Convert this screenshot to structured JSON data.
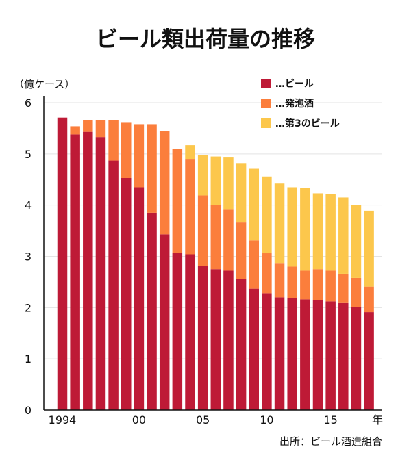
{
  "chart_data": {
    "type": "bar",
    "stacked": true,
    "title": "ビール類出荷量の推移",
    "ylabel": "（億ケース）",
    "xlabel_suffix": "年",
    "source": "出所：ビール酒造組合",
    "ylim": [
      0,
      6
    ],
    "yticks": [
      "0",
      "1",
      "2",
      "3",
      "4",
      "5",
      "6"
    ],
    "grid": true,
    "legend_position": "top-right",
    "x": [
      1994,
      1995,
      1996,
      1997,
      1998,
      1999,
      2000,
      2001,
      2002,
      2003,
      2004,
      2005,
      2006,
      2007,
      2008,
      2009,
      2010,
      2011,
      2012,
      2013,
      2014,
      2015,
      2016,
      2017,
      2018
    ],
    "xtick_labels": [
      {
        "x": 1994,
        "label": "1994"
      },
      {
        "x": 2000,
        "label": "00"
      },
      {
        "x": 2005,
        "label": "05"
      },
      {
        "x": 2010,
        "label": "10"
      },
      {
        "x": 2015,
        "label": "15"
      }
    ],
    "series": [
      {
        "name": "…ビール",
        "color": "#be1a36",
        "values": [
          5.71,
          5.38,
          5.43,
          5.33,
          4.87,
          4.53,
          4.35,
          3.85,
          3.43,
          3.07,
          3.04,
          2.81,
          2.75,
          2.72,
          2.56,
          2.37,
          2.28,
          2.2,
          2.19,
          2.16,
          2.14,
          2.12,
          2.1,
          2.01,
          1.91
        ]
      },
      {
        "name": "…発泡酒",
        "color": "#fb7e3c",
        "values": [
          0.0,
          0.16,
          0.23,
          0.33,
          0.79,
          1.09,
          1.23,
          1.73,
          2.02,
          2.03,
          1.85,
          1.38,
          1.25,
          1.19,
          1.1,
          0.94,
          0.78,
          0.67,
          0.61,
          0.56,
          0.61,
          0.6,
          0.56,
          0.57,
          0.5
        ]
      },
      {
        "name": "…第3のビール",
        "color": "#fcc74c",
        "values": [
          0.0,
          0.0,
          0.0,
          0.0,
          0.0,
          0.0,
          0.0,
          0.0,
          0.0,
          0.0,
          0.28,
          0.79,
          0.95,
          1.02,
          1.16,
          1.4,
          1.5,
          1.55,
          1.55,
          1.61,
          1.48,
          1.49,
          1.49,
          1.42,
          1.48
        ]
      }
    ]
  }
}
